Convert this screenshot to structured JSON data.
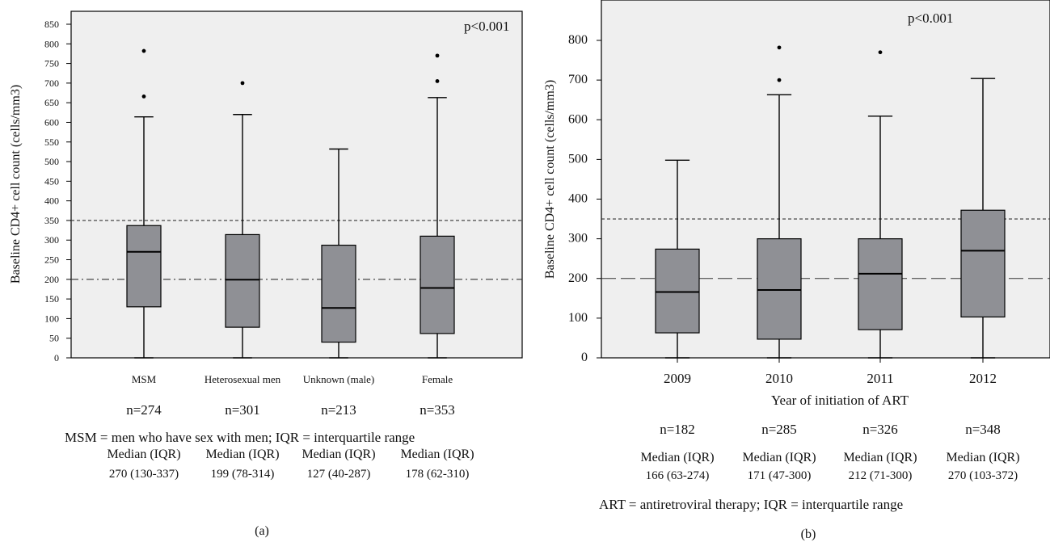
{
  "colors": {
    "panel_bg": "#efefef",
    "box_fill": "#8f9095",
    "stroke": "#000000",
    "ref_line": "#333333"
  },
  "chart_data": [
    {
      "panel_label": "(a)",
      "type": "boxplot",
      "ylabel": "Baseline CD4+ cell count (cells/mm3)",
      "ylim": [
        0,
        870
      ],
      "yticks": [
        "0",
        "50",
        "100",
        "150",
        "200",
        "250",
        "300",
        "350",
        "400",
        "450",
        "500",
        "550",
        "600",
        "650",
        "700",
        "750",
        "800",
        "850"
      ],
      "annotation": "p<0.001",
      "reference_lines": [
        350,
        200
      ],
      "categories": [
        "MSM",
        "Heterosexual men",
        "Unknown (male)",
        "Female"
      ],
      "n_labels": [
        "n=274",
        "n=301",
        "n=213",
        "n=353"
      ],
      "median_header": "Median (IQR)",
      "median_values": [
        "270 (130-337)",
        "199 (78-314)",
        "127 (40-287)",
        "178 (62-310)"
      ],
      "boxes": [
        {
          "min": 0,
          "q1": 130,
          "median": 270,
          "q3": 337,
          "max": 614,
          "outliers": [
            666,
            782
          ]
        },
        {
          "min": 0,
          "q1": 78,
          "median": 199,
          "q3": 314,
          "max": 620,
          "outliers": [
            700
          ]
        },
        {
          "min": 0,
          "q1": 40,
          "median": 127,
          "q3": 287,
          "max": 532,
          "outliers": []
        },
        {
          "min": 0,
          "q1": 62,
          "median": 178,
          "q3": 310,
          "max": 663,
          "outliers": [
            705,
            770
          ]
        }
      ],
      "footnote": "MSM = men who have sex with men; IQR = interquartile range"
    },
    {
      "panel_label": "(b)",
      "type": "boxplot",
      "ylabel": "Baseline CD4+ cell count (cells/mm3)",
      "xlabel": "Year of initiation of ART",
      "ylim": [
        0,
        890
      ],
      "yticks": [
        "0",
        "100",
        "200",
        "300",
        "400",
        "500",
        "600",
        "700",
        "800"
      ],
      "annotation": "p<0.001",
      "reference_lines": [
        350,
        200
      ],
      "categories": [
        "2009",
        "2010",
        "2011",
        "2012"
      ],
      "n_labels": [
        "n=182",
        "n=285",
        "n=326",
        "n=348"
      ],
      "median_header": "Median (IQR)",
      "median_values": [
        "166 (63-274)",
        "171 (47-300)",
        "212 (71-300)",
        "270 (103-372)"
      ],
      "boxes": [
        {
          "min": 0,
          "q1": 63,
          "median": 166,
          "q3": 274,
          "max": 498,
          "outliers": []
        },
        {
          "min": 0,
          "q1": 47,
          "median": 171,
          "q3": 300,
          "max": 663,
          "outliers": [
            700,
            782
          ]
        },
        {
          "min": 0,
          "q1": 71,
          "median": 212,
          "q3": 300,
          "max": 609,
          "outliers": [
            770
          ]
        },
        {
          "min": 0,
          "q1": 103,
          "median": 270,
          "q3": 372,
          "max": 704,
          "outliers": []
        }
      ],
      "footnote": "ART = antiretroviral therapy; IQR = interquartile range"
    }
  ]
}
